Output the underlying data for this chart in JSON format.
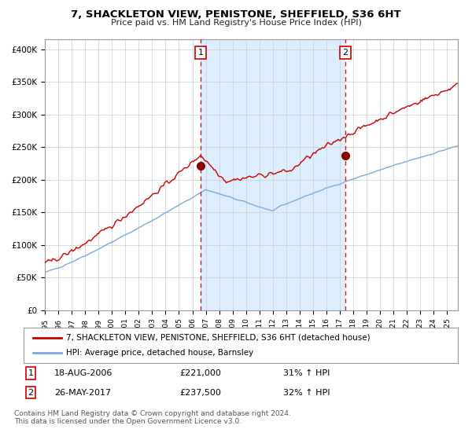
{
  "title": "7, SHACKLETON VIEW, PENISTONE, SHEFFIELD, S36 6HT",
  "subtitle": "Price paid vs. HM Land Registry's House Price Index (HPI)",
  "ylabel_ticks": [
    "£0",
    "£50K",
    "£100K",
    "£150K",
    "£200K",
    "£250K",
    "£300K",
    "£350K",
    "£400K"
  ],
  "ytick_vals": [
    0,
    50000,
    100000,
    150000,
    200000,
    250000,
    300000,
    350000,
    400000
  ],
  "ylim": [
    0,
    415000
  ],
  "xlim_start": 1995.0,
  "xlim_end": 2025.8,
  "red_line_color": "#cc0000",
  "blue_line_color": "#7aaadd",
  "background_fill": "#ddeeff",
  "grid_color": "#cccccc",
  "transaction1_x": 2006.63,
  "transaction1_y": 221000,
  "transaction2_x": 2017.4,
  "transaction2_y": 237500,
  "transaction1_label": "1",
  "transaction2_label": "2",
  "legend_red": "7, SHACKLETON VIEW, PENISTONE, SHEFFIELD, S36 6HT (detached house)",
  "legend_blue": "HPI: Average price, detached house, Barnsley",
  "annot1_date": "18-AUG-2006",
  "annot1_price": "£221,000",
  "annot1_hpi": "31% ↑ HPI",
  "annot2_date": "26-MAY-2017",
  "annot2_price": "£237,500",
  "annot2_hpi": "32% ↑ HPI",
  "footnote": "Contains HM Land Registry data © Crown copyright and database right 2024.\nThis data is licensed under the Open Government Licence v3.0."
}
